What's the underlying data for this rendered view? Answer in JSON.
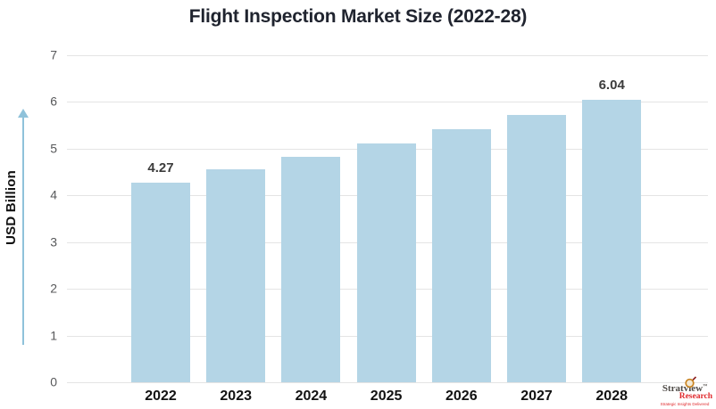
{
  "title": "Flight Inspection Market Size (2022-28)",
  "y_axis_title": "USD Billion",
  "chart_data": {
    "type": "bar",
    "title": "Flight Inspection Market Size (2022-28)",
    "xlabel": "",
    "ylabel": "USD Billion",
    "categories": [
      "2022",
      "2023",
      "2024",
      "2025",
      "2026",
      "2027",
      "2028"
    ],
    "values": [
      4.27,
      4.55,
      4.82,
      5.11,
      5.42,
      5.72,
      6.04
    ],
    "data_labels": [
      "4.27",
      "",
      "",
      "",
      "",
      "",
      "6.04"
    ],
    "ylim": [
      0,
      7
    ],
    "yticks": [
      0,
      1,
      2,
      3,
      4,
      5,
      6,
      7
    ],
    "grid": true,
    "legend": "none",
    "bar_color": "#b4d5e6",
    "gridline_color": "#e4e4e4",
    "axis_arrow_color": "#8fc2da"
  },
  "logo": {
    "brand": "Stratview",
    "tm": "™",
    "sub": "Research",
    "tagline": "Strategic Insights Delivered"
  }
}
